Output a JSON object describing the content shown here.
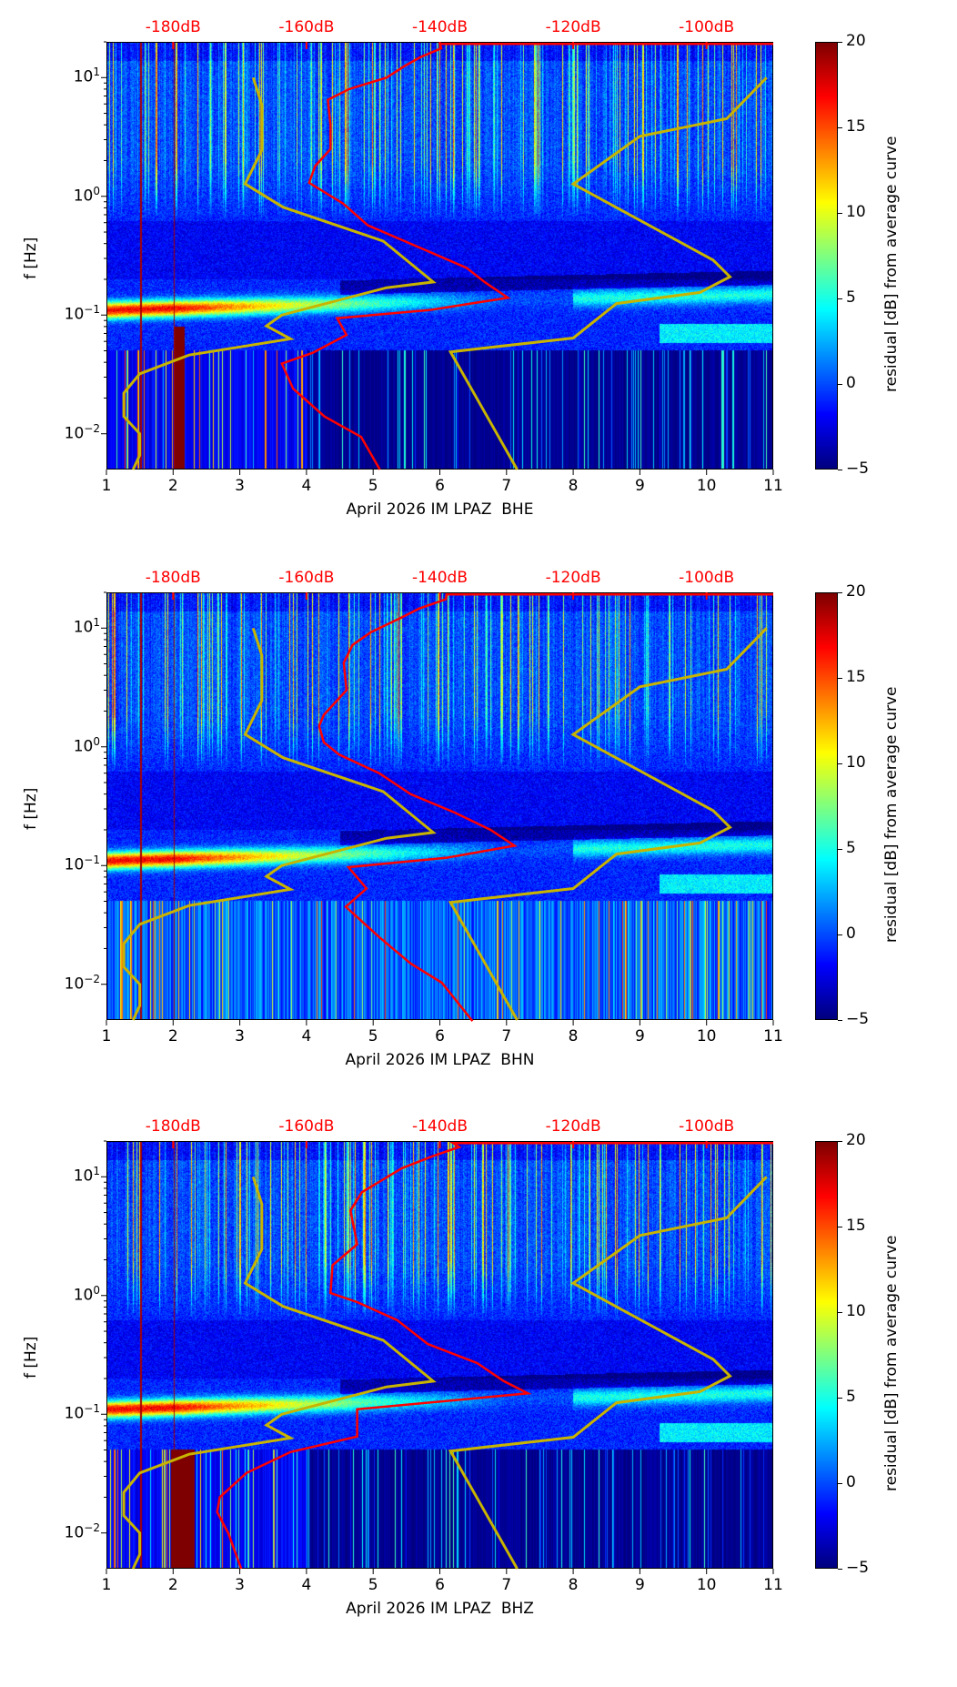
{
  "chart_data": {
    "type": "heatmap",
    "x_range": [
      1,
      11
    ],
    "y_range_hz": [
      0.005,
      20
    ],
    "y_scale": "log",
    "x_ticks": [
      1,
      2,
      3,
      4,
      5,
      6,
      7,
      8,
      9,
      10,
      11
    ],
    "y_tick_exponents": [
      1,
      0,
      -1,
      -2
    ],
    "y_tick_base": "10",
    "ylabel": "f [Hz]",
    "top_axis": {
      "ticks_db": [
        -180,
        -160,
        -140,
        -120,
        -100
      ],
      "labels": [
        "-180dB",
        "-160dB",
        "-140dB",
        "-120dB",
        "-100dB"
      ],
      "color": "#ff0000"
    },
    "colorbar": {
      "label": "residual [dB] from average curve",
      "range": [
        -5,
        20
      ],
      "ticks": [
        20,
        15,
        10,
        5,
        0,
        -5
      ],
      "tick_labels": [
        "20",
        "15",
        "10",
        "5",
        "0",
        "−5"
      ],
      "colormap": "jet"
    },
    "noise_models": {
      "color": "#c8b400",
      "low": [
        [
          10,
          -168
        ],
        [
          5.9,
          -166.7
        ],
        [
          2.45,
          -166.7
        ],
        [
          1.27,
          -169.2
        ],
        [
          0.81,
          -163.5
        ],
        [
          0.42,
          -148.5
        ],
        [
          0.19,
          -141
        ],
        [
          0.17,
          -148
        ],
        [
          0.1,
          -163.7
        ],
        [
          0.081,
          -166
        ],
        [
          0.063,
          -162.4
        ],
        [
          0.046,
          -177.6
        ],
        [
          0.032,
          -185
        ],
        [
          0.022,
          -187.4
        ],
        [
          0.014,
          -187.4
        ],
        [
          0.01,
          -185
        ],
        [
          0.0066,
          -185
        ],
        [
          0.005,
          -186
        ]
      ],
      "high": [
        [
          10,
          -91
        ],
        [
          4.5,
          -97
        ],
        [
          3.2,
          -110
        ],
        [
          1.27,
          -120
        ],
        [
          0.29,
          -99
        ],
        [
          0.21,
          -96.5
        ],
        [
          0.155,
          -101
        ],
        [
          0.125,
          -113.5
        ],
        [
          0.064,
          -120
        ],
        [
          0.049,
          -138.4
        ],
        [
          0.005,
          -128.4
        ]
      ]
    },
    "panels": [
      {
        "xlabel": "April 2026 IM LPAZ  BHE",
        "channel": "BHE",
        "average_curve_db": [
          [
            19.2,
            -90
          ],
          [
            19.2,
            -140
          ],
          [
            17.6,
            -139.8
          ],
          [
            14.8,
            -143
          ],
          [
            12.5,
            -145.3
          ],
          [
            10,
            -148
          ],
          [
            8,
            -153.6
          ],
          [
            6.5,
            -156.8
          ],
          [
            4,
            -156.4
          ],
          [
            2.5,
            -156.4
          ],
          [
            1.8,
            -158.7
          ],
          [
            1.3,
            -159.6
          ],
          [
            0.87,
            -154.5
          ],
          [
            0.57,
            -150.8
          ],
          [
            0.38,
            -143.5
          ],
          [
            0.25,
            -136
          ],
          [
            0.19,
            -133.3
          ],
          [
            0.14,
            -129.8
          ],
          [
            0.11,
            -141.6
          ],
          [
            0.094,
            -155.4
          ],
          [
            0.068,
            -154
          ],
          [
            0.048,
            -159.1
          ],
          [
            0.039,
            -163.7
          ],
          [
            0.024,
            -162
          ],
          [
            0.014,
            -157.3
          ],
          [
            0.0094,
            -151.8
          ],
          [
            0.005,
            -149
          ]
        ]
      },
      {
        "xlabel": "April 2026 IM LPAZ  BHN",
        "channel": "BHN",
        "average_curve_db": [
          [
            19.2,
            -90
          ],
          [
            19.2,
            -139
          ],
          [
            17.5,
            -139.1
          ],
          [
            14.6,
            -143.1
          ],
          [
            12.3,
            -145.7
          ],
          [
            9.2,
            -150.4
          ],
          [
            7.2,
            -153.1
          ],
          [
            5.1,
            -154.4
          ],
          [
            3,
            -154
          ],
          [
            1.86,
            -157.4
          ],
          [
            1.5,
            -158.1
          ],
          [
            1.09,
            -157.4
          ],
          [
            0.86,
            -155.1
          ],
          [
            0.6,
            -149.1
          ],
          [
            0.4,
            -144.4
          ],
          [
            0.28,
            -137.8
          ],
          [
            0.2,
            -132.4
          ],
          [
            0.147,
            -128.8
          ],
          [
            0.116,
            -139.1
          ],
          [
            0.097,
            -153.7
          ],
          [
            0.064,
            -151
          ],
          [
            0.045,
            -154.1
          ],
          [
            0.025,
            -149.1
          ],
          [
            0.015,
            -144.4
          ],
          [
            0.0103,
            -139.7
          ],
          [
            0.0049,
            -135.1
          ]
        ]
      },
      {
        "xlabel": "April 2026 IM LPAZ  BHZ",
        "channel": "BHZ",
        "average_curve_db": [
          [
            19.2,
            -90
          ],
          [
            19.2,
            -138
          ],
          [
            17.8,
            -137.1
          ],
          [
            14.9,
            -141.1
          ],
          [
            11.8,
            -145.7
          ],
          [
            7.4,
            -151.7
          ],
          [
            5.2,
            -153.4
          ],
          [
            2.7,
            -152.4
          ],
          [
            1.8,
            -156.1
          ],
          [
            1.05,
            -156.4
          ],
          [
            0.88,
            -152.4
          ],
          [
            0.62,
            -146.4
          ],
          [
            0.39,
            -141.8
          ],
          [
            0.27,
            -134.4
          ],
          [
            0.19,
            -130.4
          ],
          [
            0.15,
            -126.8
          ],
          [
            0.11,
            -152.4
          ],
          [
            0.065,
            -152.4
          ],
          [
            0.048,
            -162.4
          ],
          [
            0.032,
            -169
          ],
          [
            0.02,
            -173
          ],
          [
            0.015,
            -173.4
          ],
          [
            0.0099,
            -171.7
          ],
          [
            0.005,
            -169.8
          ]
        ]
      }
    ]
  }
}
